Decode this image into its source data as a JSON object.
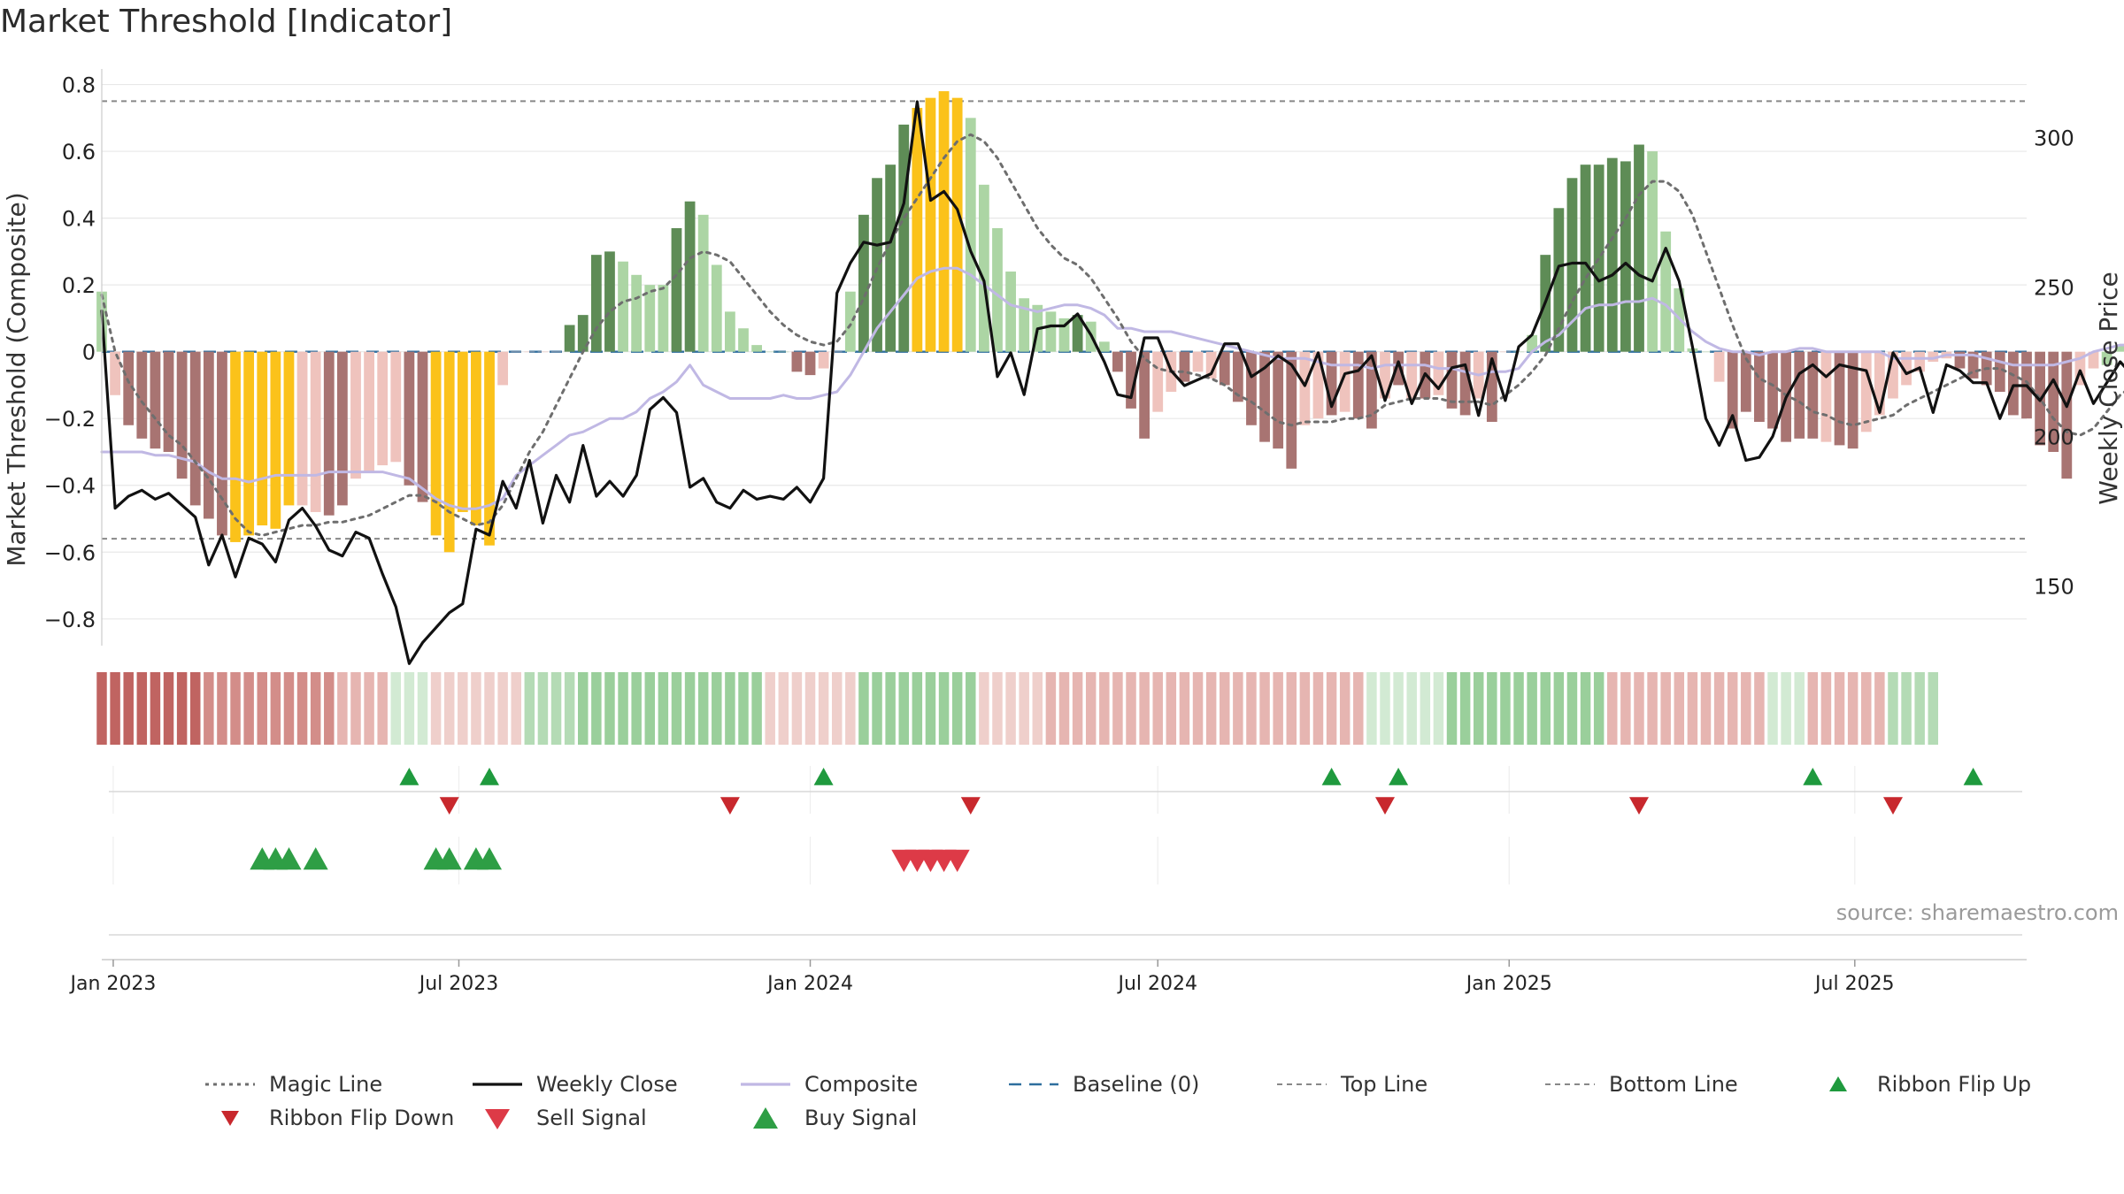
{
  "page": {
    "title": "Market Threshold [Indicator]",
    "source": "source: sharemaestro.com"
  },
  "chart_data": {
    "type": "bar",
    "title": "Market Threshold [Indicator]",
    "ylabel": "Market Threshold (Composite)",
    "ylabel_right": "Weekly Close Price",
    "ylim": [
      -0.88,
      0.82
    ],
    "ylim_right": [
      130,
      320
    ],
    "yticks": [
      0.8,
      0.6,
      0.4,
      0.2,
      0,
      -0.2,
      -0.4,
      -0.6,
      -0.8
    ],
    "ytick_labels": [
      "0.8",
      "0.6",
      "0.4",
      "0.2",
      "0",
      "−0.2",
      "−0.4",
      "−0.6",
      "−0.8"
    ],
    "yticks_right": [
      300,
      250,
      200,
      150
    ],
    "ytick_labels_right": [
      "300",
      "250",
      "200",
      "150"
    ],
    "x_start": "2022-12-26",
    "x_end": "2025-09-29",
    "xticks": [
      {
        "date": "2023-01-01",
        "label": "Jan 2023"
      },
      {
        "date": "2023-07-01",
        "label": "Jul 2023"
      },
      {
        "date": "2024-01-01",
        "label": "Jan 2024"
      },
      {
        "date": "2024-07-01",
        "label": "Jul 2024"
      },
      {
        "date": "2025-01-01",
        "label": "Jan 2025"
      },
      {
        "date": "2025-07-01",
        "label": "Jul 2025"
      }
    ],
    "top_line": 0.75,
    "bottom_line": -0.56,
    "baseline": 0,
    "grid": true,
    "legend_position": "bottom",
    "bar_colors": {
      "strong_bull": "#5e8c56",
      "weak_bull": "#acd5a4",
      "strong_bear": "#a87472",
      "weak_bear": "#efc3bd",
      "extreme": "#fbc21a"
    },
    "line_colors": {
      "magic_line": "#6e6e6e",
      "weekly_close": "#111111",
      "composite": "#c0b8e4",
      "baseline": "#2e6e9e",
      "top_line": "#888888",
      "bottom_line": "#888888",
      "ribbon_flip_up": "#1f9a3e",
      "ribbon_flip_down": "#c8282d",
      "sell_signal": "#dd3a47",
      "buy_signal": "#2e9e45"
    },
    "bars": [
      0.18,
      -0.13,
      -0.22,
      -0.26,
      -0.29,
      -0.3,
      -0.38,
      -0.46,
      -0.5,
      -0.55,
      -0.57,
      -0.55,
      -0.52,
      -0.53,
      -0.46,
      -0.46,
      -0.48,
      -0.49,
      -0.46,
      -0.38,
      -0.36,
      -0.34,
      -0.33,
      -0.4,
      -0.45,
      -0.55,
      -0.6,
      -0.48,
      -0.52,
      -0.58,
      -0.1,
      0,
      0,
      0,
      0,
      0.08,
      0.11,
      0.29,
      0.3,
      0.27,
      0.23,
      0.2,
      0.2,
      0.37,
      0.45,
      0.41,
      0.26,
      0.12,
      0.07,
      0.02,
      0,
      0,
      -0.06,
      -0.07,
      -0.05,
      0,
      0.18,
      0.41,
      0.52,
      0.56,
      0.68,
      0.73,
      0.76,
      0.78,
      0.76,
      0.7,
      0.5,
      0.37,
      0.24,
      0.16,
      0.14,
      0.12,
      0.1,
      0.11,
      0.09,
      0.03,
      -0.06,
      -0.17,
      -0.26,
      -0.18,
      -0.12,
      -0.09,
      -0.06,
      -0.08,
      -0.1,
      -0.15,
      -0.22,
      -0.27,
      -0.29,
      -0.35,
      -0.22,
      -0.2,
      -0.19,
      -0.18,
      -0.2,
      -0.23,
      -0.14,
      -0.1,
      -0.14,
      -0.14,
      -0.13,
      -0.17,
      -0.19,
      -0.14,
      -0.21,
      0,
      0,
      0.05,
      0.29,
      0.43,
      0.52,
      0.56,
      0.56,
      0.58,
      0.57,
      0.62,
      0.6,
      0.36,
      0.19,
      0.01,
      0,
      -0.09,
      -0.23,
      -0.18,
      -0.21,
      -0.23,
      -0.27,
      -0.26,
      -0.26,
      -0.27,
      -0.28,
      -0.29,
      -0.24,
      -0.19,
      -0.14,
      -0.1,
      -0.06,
      -0.03,
      -0.02,
      -0.05,
      -0.08,
      -0.1,
      -0.12,
      -0.19,
      -0.2,
      -0.28,
      -0.3,
      -0.38,
      -0.1,
      -0.05,
      -0.04,
      0.02,
      0.03,
      0.02
    ],
    "bar_classes": [
      "weak_bull",
      "weak_bear",
      "strong_bear",
      "strong_bear",
      "strong_bear",
      "strong_bear",
      "strong_bear",
      "strong_bear",
      "strong_bear",
      "strong_bear",
      "extreme",
      "extreme",
      "extreme",
      "extreme",
      "extreme",
      "weak_bear",
      "weak_bear",
      "strong_bear",
      "strong_bear",
      "weak_bear",
      "weak_bear",
      "weak_bear",
      "weak_bear",
      "strong_bear",
      "strong_bear",
      "extreme",
      "extreme",
      "extreme",
      "extreme",
      "extreme",
      "weak_bear",
      "weak_bear",
      "weak_bear",
      "weak_bear",
      "weak_bear",
      "strong_bull",
      "strong_bull",
      "strong_bull",
      "strong_bull",
      "weak_bull",
      "weak_bull",
      "weak_bull",
      "weak_bull",
      "strong_bull",
      "strong_bull",
      "weak_bull",
      "weak_bull",
      "weak_bull",
      "weak_bull",
      "weak_bull",
      "weak_bull",
      "weak_bull",
      "strong_bear",
      "strong_bear",
      "weak_bear",
      "weak_bear",
      "weak_bull",
      "strong_bull",
      "strong_bull",
      "strong_bull",
      "strong_bull",
      "extreme",
      "extreme",
      "extreme",
      "extreme",
      "weak_bull",
      "weak_bull",
      "weak_bull",
      "weak_bull",
      "weak_bull",
      "weak_bull",
      "weak_bull",
      "weak_bull",
      "strong_bull",
      "weak_bull",
      "weak_bull",
      "strong_bear",
      "strong_bear",
      "strong_bear",
      "weak_bear",
      "weak_bear",
      "strong_bear",
      "weak_bear",
      "weak_bear",
      "strong_bear",
      "strong_bear",
      "strong_bear",
      "strong_bear",
      "strong_bear",
      "strong_bear",
      "weak_bear",
      "weak_bear",
      "strong_bear",
      "weak_bear",
      "strong_bear",
      "strong_bear",
      "weak_bear",
      "strong_bear",
      "weak_bear",
      "strong_bear",
      "weak_bear",
      "strong_bear",
      "strong_bear",
      "weak_bear",
      "strong_bear",
      "weak_bear",
      "weak_bull",
      "weak_bull",
      "strong_bull",
      "strong_bull",
      "strong_bull",
      "strong_bull",
      "strong_bull",
      "strong_bull",
      "strong_bull",
      "strong_bull",
      "weak_bull",
      "weak_bull",
      "weak_bull",
      "weak_bull",
      "weak_bull",
      "weak_bear",
      "strong_bear",
      "strong_bear",
      "strong_bear",
      "strong_bear",
      "strong_bear",
      "strong_bear",
      "strong_bear",
      "weak_bear",
      "strong_bear",
      "strong_bear",
      "weak_bear",
      "weak_bear",
      "weak_bear",
      "weak_bear",
      "weak_bear",
      "weak_bear",
      "weak_bear",
      "strong_bear",
      "strong_bear",
      "strong_bear",
      "strong_bear",
      "strong_bear",
      "strong_bear",
      "strong_bear",
      "strong_bear",
      "strong_bear",
      "weak_bear",
      "weak_bear",
      "weak_bull",
      "weak_bull",
      "weak_bull",
      "weak_bull"
    ],
    "series": [
      {
        "name": "Magic Line",
        "values": [
          0.17,
          0.0,
          -0.09,
          -0.15,
          -0.2,
          -0.25,
          -0.28,
          -0.33,
          -0.38,
          -0.44,
          -0.5,
          -0.54,
          -0.55,
          -0.54,
          -0.53,
          -0.52,
          -0.52,
          -0.51,
          -0.51,
          -0.5,
          -0.49,
          -0.47,
          -0.45,
          -0.43,
          -0.43,
          -0.45,
          -0.48,
          -0.5,
          -0.52,
          -0.51,
          -0.46,
          -0.38,
          -0.3,
          -0.24,
          -0.16,
          -0.08,
          0.0,
          0.07,
          0.12,
          0.15,
          0.16,
          0.18,
          0.19,
          0.23,
          0.28,
          0.3,
          0.29,
          0.27,
          0.22,
          0.17,
          0.12,
          0.08,
          0.05,
          0.03,
          0.02,
          0.03,
          0.08,
          0.16,
          0.25,
          0.33,
          0.4,
          0.46,
          0.52,
          0.58,
          0.63,
          0.65,
          0.63,
          0.58,
          0.51,
          0.44,
          0.37,
          0.32,
          0.28,
          0.26,
          0.22,
          0.16,
          0.1,
          0.03,
          -0.02,
          -0.05,
          -0.06,
          -0.06,
          -0.07,
          -0.08,
          -0.1,
          -0.13,
          -0.15,
          -0.18,
          -0.21,
          -0.22,
          -0.21,
          -0.21,
          -0.21,
          -0.2,
          -0.2,
          -0.19,
          -0.16,
          -0.15,
          -0.14,
          -0.14,
          -0.14,
          -0.15,
          -0.15,
          -0.15,
          -0.16,
          -0.13,
          -0.1,
          -0.06,
          -0.01,
          0.07,
          0.15,
          0.22,
          0.28,
          0.34,
          0.4,
          0.47,
          0.51,
          0.51,
          0.48,
          0.41,
          0.3,
          0.19,
          0.08,
          -0.02,
          -0.08,
          -0.1,
          -0.13,
          -0.15,
          -0.18,
          -0.19,
          -0.21,
          -0.22,
          -0.21,
          -0.2,
          -0.19,
          -0.16,
          -0.14,
          -0.12,
          -0.1,
          -0.08,
          -0.06,
          -0.05,
          -0.05,
          -0.07,
          -0.09,
          -0.14,
          -0.2,
          -0.24,
          -0.25,
          -0.23,
          -0.18,
          -0.13,
          -0.1,
          -0.08,
          -0.06
        ]
      },
      {
        "name": "Weekly Close",
        "values": [
          242,
          176,
          180,
          182,
          179,
          181,
          177,
          173,
          157,
          167,
          153,
          166,
          164,
          158,
          172,
          176,
          170,
          162,
          160,
          168,
          166,
          154,
          143,
          124,
          131,
          136,
          141,
          144,
          169,
          167,
          185,
          176,
          192,
          171,
          187,
          178,
          197,
          180,
          185,
          180,
          187,
          209,
          213,
          208,
          183,
          186,
          178,
          176,
          182,
          179,
          180,
          179,
          183,
          178,
          186,
          248,
          258,
          265,
          264,
          265,
          278,
          312,
          279,
          282,
          276,
          262,
          252,
          220,
          228,
          214,
          236,
          237,
          237,
          241,
          234,
          225,
          214,
          213,
          233,
          233,
          222,
          217,
          219,
          221,
          231,
          231,
          220,
          223,
          227,
          224,
          217,
          228,
          210,
          221,
          222,
          227,
          212,
          225,
          211,
          221,
          216,
          223,
          224,
          207,
          226,
          212,
          230,
          234,
          245,
          257,
          258,
          258,
          252,
          254,
          258,
          254,
          252,
          263,
          252,
          230,
          206,
          197,
          207,
          192,
          193,
          200,
          213,
          221,
          224,
          220,
          224,
          223,
          222,
          208,
          228,
          221,
          223,
          208,
          224,
          222,
          218,
          218,
          206,
          217,
          217,
          212,
          219,
          210,
          222,
          211,
          218,
          225,
          220,
          223,
          220,
          218,
          225
        ]
      },
      {
        "name": "Composite",
        "values": [
          -0.3,
          -0.3,
          -0.3,
          -0.3,
          -0.31,
          -0.31,
          -0.32,
          -0.33,
          -0.36,
          -0.38,
          -0.38,
          -0.39,
          -0.38,
          -0.37,
          -0.37,
          -0.37,
          -0.37,
          -0.36,
          -0.36,
          -0.36,
          -0.36,
          -0.36,
          -0.37,
          -0.38,
          -0.41,
          -0.44,
          -0.46,
          -0.47,
          -0.47,
          -0.46,
          -0.44,
          -0.37,
          -0.34,
          -0.31,
          -0.28,
          -0.25,
          -0.24,
          -0.22,
          -0.2,
          -0.2,
          -0.18,
          -0.14,
          -0.12,
          -0.09,
          -0.04,
          -0.1,
          -0.12,
          -0.14,
          -0.14,
          -0.14,
          -0.14,
          -0.13,
          -0.14,
          -0.14,
          -0.13,
          -0.12,
          -0.07,
          0.0,
          0.07,
          0.12,
          0.17,
          0.22,
          0.24,
          0.25,
          0.25,
          0.23,
          0.2,
          0.17,
          0.14,
          0.13,
          0.12,
          0.13,
          0.14,
          0.14,
          0.13,
          0.11,
          0.07,
          0.07,
          0.06,
          0.06,
          0.06,
          0.05,
          0.04,
          0.03,
          0.02,
          0.01,
          0.0,
          -0.01,
          -0.02,
          -0.02,
          -0.02,
          -0.03,
          -0.04,
          -0.04,
          -0.04,
          -0.05,
          -0.04,
          -0.04,
          -0.04,
          -0.04,
          -0.05,
          -0.05,
          -0.06,
          -0.07,
          -0.06,
          -0.06,
          -0.05,
          0.0,
          0.03,
          0.05,
          0.09,
          0.13,
          0.14,
          0.14,
          0.15,
          0.15,
          0.16,
          0.14,
          0.1,
          0.06,
          0.03,
          0.01,
          0.0,
          0.0,
          -0.01,
          0.0,
          0.0,
          0.01,
          0.01,
          0.0,
          0.0,
          0.0,
          0.0,
          0.0,
          -0.02,
          -0.02,
          -0.02,
          -0.02,
          -0.01,
          -0.01,
          -0.01,
          -0.02,
          -0.03,
          -0.04,
          -0.04,
          -0.04,
          -0.04,
          -0.03,
          -0.02,
          0.0,
          0.01,
          0.02,
          0.02,
          0.01,
          0.01
        ]
      },
      {
        "name": "Baseline (0)"
      },
      {
        "name": "Top Line"
      },
      {
        "name": "Bottom Line"
      }
    ],
    "ribbon": {
      "label": "",
      "colors": {
        "deep_bear": "#c06461",
        "bear": "#d38d89",
        "light_bear": "#e6b5b1",
        "faint_bear": "#efcfcb",
        "faint_bull": "#d2ead3",
        "light_bull": "#b4dbb5",
        "bull": "#9acf9b"
      },
      "segments": [
        {
          "count": 8,
          "tone": "deep_bear"
        },
        {
          "count": 10,
          "tone": "bear"
        },
        {
          "count": 4,
          "tone": "light_bear"
        },
        {
          "count": 3,
          "tone": "faint_bull"
        },
        {
          "count": 7,
          "tone": "faint_bear"
        },
        {
          "count": 4,
          "tone": "light_bull"
        },
        {
          "count": 14,
          "tone": "bull"
        },
        {
          "count": 7,
          "tone": "faint_bear"
        },
        {
          "count": 9,
          "tone": "bull"
        },
        {
          "count": 5,
          "tone": "faint_bear"
        },
        {
          "count": 24,
          "tone": "light_bear"
        },
        {
          "count": 6,
          "tone": "faint_bull"
        },
        {
          "count": 12,
          "tone": "bull"
        },
        {
          "count": 12,
          "tone": "light_bear"
        },
        {
          "count": 3,
          "tone": "faint_bull"
        },
        {
          "count": 6,
          "tone": "light_bear"
        },
        {
          "count": 4,
          "tone": "light_bull"
        }
      ]
    },
    "ribbon_flip_up": [
      "2023-06-05",
      "2023-07-17",
      "2024-01-08",
      "2024-09-30",
      "2024-11-04",
      "2025-06-09",
      "2025-09-01"
    ],
    "ribbon_flip_down": [
      "2023-06-26",
      "2023-11-20",
      "2024-03-25",
      "2024-10-28",
      "2025-03-10",
      "2025-07-21"
    ],
    "buy_signal": [
      "2023-03-20",
      "2023-03-27",
      "2023-04-03",
      "2023-04-17",
      "2023-06-19",
      "2023-06-26",
      "2023-07-10",
      "2023-07-17"
    ],
    "sell_signal": [
      "2024-02-19",
      "2024-02-26",
      "2024-03-04",
      "2024-03-11",
      "2024-03-18"
    ]
  },
  "legend": [
    {
      "key": "magic_line",
      "label": "Magic Line"
    },
    {
      "key": "weekly_close",
      "label": "Weekly Close"
    },
    {
      "key": "composite",
      "label": "Composite"
    },
    {
      "key": "baseline",
      "label": "Baseline (0)"
    },
    {
      "key": "top_line",
      "label": "Top Line"
    },
    {
      "key": "bottom_line",
      "label": "Bottom Line"
    },
    {
      "key": "ribbon_flip_up",
      "label": "Ribbon Flip Up"
    },
    {
      "key": "ribbon_flip_down",
      "label": "Ribbon Flip Down"
    },
    {
      "key": "sell_signal",
      "label": "Sell Signal"
    },
    {
      "key": "buy_signal",
      "label": "Buy Signal"
    }
  ]
}
